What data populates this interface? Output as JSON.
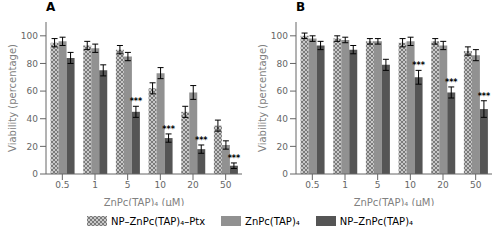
{
  "chart_data": [
    {
      "type": "bar",
      "title": "A",
      "xlabel": "ZnPc(TAP)₄ (µM)",
      "ylabel": "Viability (percentage)",
      "categories": [
        "0.5",
        "1",
        "5",
        "10",
        "20",
        "50"
      ],
      "series": [
        {
          "name": "NP–ZnPc(TAP)₄–Ptx",
          "color": "#c8c8c8",
          "values": [
            95,
            93,
            90,
            62,
            45,
            35
          ],
          "errors": [
            3,
            3,
            3,
            4,
            4,
            4
          ]
        },
        {
          "name": "ZnPc(TAP)₄",
          "color": "#b0b0b0",
          "values": [
            96,
            91,
            85,
            73,
            59,
            21
          ],
          "errors": [
            3,
            3,
            3,
            4,
            5,
            3
          ]
        },
        {
          "name": "NP–ZnPc(TAP)₄",
          "color": "#555555",
          "values": [
            84,
            75,
            45,
            26,
            18,
            6
          ],
          "errors": [
            4,
            4,
            4,
            3,
            3,
            2
          ]
        }
      ],
      "annotations": [
        {
          "series": "NP–ZnPc(TAP)₄",
          "category": "5",
          "text": "***"
        },
        {
          "series": "NP–ZnPc(TAP)₄",
          "category": "10",
          "text": "***"
        },
        {
          "series": "NP–ZnPc(TAP)₄",
          "category": "20",
          "text": "***"
        },
        {
          "series": "NP–ZnPc(TAP)₄",
          "category": "50",
          "text": "***"
        }
      ],
      "ylim": [
        0,
        110
      ],
      "yticks": [
        0,
        20,
        40,
        60,
        80,
        100
      ],
      "grid": false
    },
    {
      "type": "bar",
      "title": "B",
      "xlabel": "ZnPc(TAP)₄ (µM)",
      "ylabel": "Viability (percentage)",
      "categories": [
        "0.5",
        "1",
        "5",
        "10",
        "20",
        "50"
      ],
      "series": [
        {
          "name": "NP–ZnPc(TAP)₄–Ptx",
          "color": "#c8c8c8",
          "values": [
            100,
            98,
            96,
            95,
            96,
            89
          ],
          "errors": [
            2,
            2,
            2,
            3,
            2,
            3
          ]
        },
        {
          "name": "ZnPc(TAP)₄",
          "color": "#b0b0b0",
          "values": [
            98,
            97,
            96,
            96,
            93,
            86
          ],
          "errors": [
            2,
            2,
            2,
            3,
            3,
            4
          ]
        },
        {
          "name": "NP–ZnPc(TAP)₄",
          "color": "#555555",
          "values": [
            93,
            90,
            79,
            70,
            59,
            47
          ],
          "errors": [
            3,
            3,
            4,
            5,
            4,
            6
          ]
        }
      ],
      "annotations": [
        {
          "series": "NP–ZnPc(TAP)₄",
          "category": "10",
          "text": "***"
        },
        {
          "series": "NP–ZnPc(TAP)₄",
          "category": "20",
          "text": "***"
        },
        {
          "series": "NP–ZnPc(TAP)₄",
          "category": "50",
          "text": "***"
        }
      ],
      "ylim": [
        0,
        110
      ],
      "yticks": [
        0,
        20,
        40,
        60,
        80,
        100
      ],
      "grid": false
    }
  ]
}
